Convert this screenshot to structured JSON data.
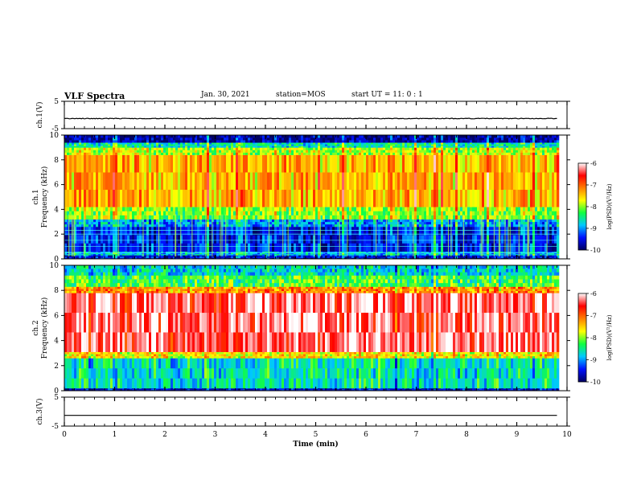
{
  "header": {
    "title": "VLF Spectra",
    "date": "Jan. 30, 2021",
    "station": "station=MOS",
    "start_ut": "start UT =  11: 0  : 1"
  },
  "chart_data": [
    {
      "type": "line",
      "id": "ch1-voltage",
      "ylabel": "ch.1(V)",
      "ylim": [
        -5,
        5
      ],
      "yticks": [
        "5",
        "-5"
      ],
      "xlim": [
        0,
        10
      ],
      "series": [
        {
          "x": [
            0,
            9.8
          ],
          "values": [
            -1.3,
            -1.3
          ]
        }
      ],
      "color": "#000000"
    },
    {
      "type": "heatmap",
      "id": "ch1-spectrogram",
      "ylabel": "ch.1\nFrequency (kHz)",
      "ylabel_line1": "ch.1",
      "ylabel_line2": "Frequency (kHz)",
      "ylim": [
        0,
        10
      ],
      "yticks": [
        "0",
        "2",
        "4",
        "6",
        "8",
        "10"
      ],
      "xlim": [
        0,
        10
      ],
      "data_end_min": 9.8,
      "bands": [
        {
          "f0": 0.0,
          "f1": 0.3,
          "level": -9.6
        },
        {
          "f0": 0.3,
          "f1": 0.6,
          "level": -8.9
        },
        {
          "f0": 0.6,
          "f1": 2.6,
          "level": -9.5
        },
        {
          "f0": 2.6,
          "f1": 3.2,
          "level": -9.0
        },
        {
          "f0": 3.2,
          "f1": 4.2,
          "level": -8.0
        },
        {
          "f0": 4.2,
          "f1": 8.4,
          "level": -7.4
        },
        {
          "f0": 8.4,
          "f1": 9.0,
          "level": -7.9
        },
        {
          "f0": 9.0,
          "f1": 9.4,
          "level": -8.6
        },
        {
          "f0": 9.4,
          "f1": 10.0,
          "level": -9.8
        }
      ],
      "colorbar": {
        "label": "log(PSD)(V²/Hz)",
        "range": [
          -10,
          -6
        ],
        "ticks": [
          "-6",
          "-7",
          "-8",
          "-9",
          "-10"
        ],
        "colors": [
          "#000060",
          "#0010ff",
          "#00c8ff",
          "#10ff40",
          "#ffff00",
          "#ff8000",
          "#ff0000",
          "#ffffff"
        ]
      }
    },
    {
      "type": "heatmap",
      "id": "ch2-spectrogram",
      "ylabel": "ch.2\nFrequency (kHz)",
      "ylabel_line1": "ch.2",
      "ylabel_line2": "Frequency (kHz)",
      "ylim": [
        0,
        10
      ],
      "yticks": [
        "0",
        "2",
        "4",
        "6",
        "8",
        "10"
      ],
      "xlim": [
        0,
        10
      ],
      "data_end_min": 9.8,
      "bands": [
        {
          "f0": 0.0,
          "f1": 0.2,
          "level": -9.6
        },
        {
          "f0": 0.2,
          "f1": 2.6,
          "level": -8.6
        },
        {
          "f0": 2.6,
          "f1": 3.1,
          "level": -7.6
        },
        {
          "f0": 3.1,
          "f1": 7.8,
          "level": -6.3
        },
        {
          "f0": 7.8,
          "f1": 8.3,
          "level": -7.2
        },
        {
          "f0": 8.3,
          "f1": 9.2,
          "level": -8.2
        },
        {
          "f0": 9.2,
          "f1": 10.0,
          "level": -8.7
        }
      ],
      "colorbar": {
        "label": "log(PSD)(V²/Hz)",
        "range": [
          -10,
          -6
        ],
        "ticks": [
          "-6",
          "-7",
          "-8",
          "-9",
          "-10"
        ],
        "colors": [
          "#000060",
          "#0010ff",
          "#00c8ff",
          "#10ff40",
          "#ffff00",
          "#ff8000",
          "#ff0000",
          "#ffffff"
        ]
      }
    },
    {
      "type": "line",
      "id": "ch3-voltage",
      "ylabel": "ch.3(V)",
      "ylim": [
        -5,
        5
      ],
      "yticks": [
        "5",
        "-5"
      ],
      "xlim": [
        0,
        10
      ],
      "xlabel": "Time (min)",
      "xticks": [
        "0",
        "1",
        "2",
        "3",
        "4",
        "5",
        "6",
        "7",
        "8",
        "9",
        "10"
      ],
      "series": [
        {
          "x": [
            0,
            9.8
          ],
          "values": [
            -1.3,
            -1.3
          ]
        }
      ],
      "color": "#000000"
    }
  ]
}
